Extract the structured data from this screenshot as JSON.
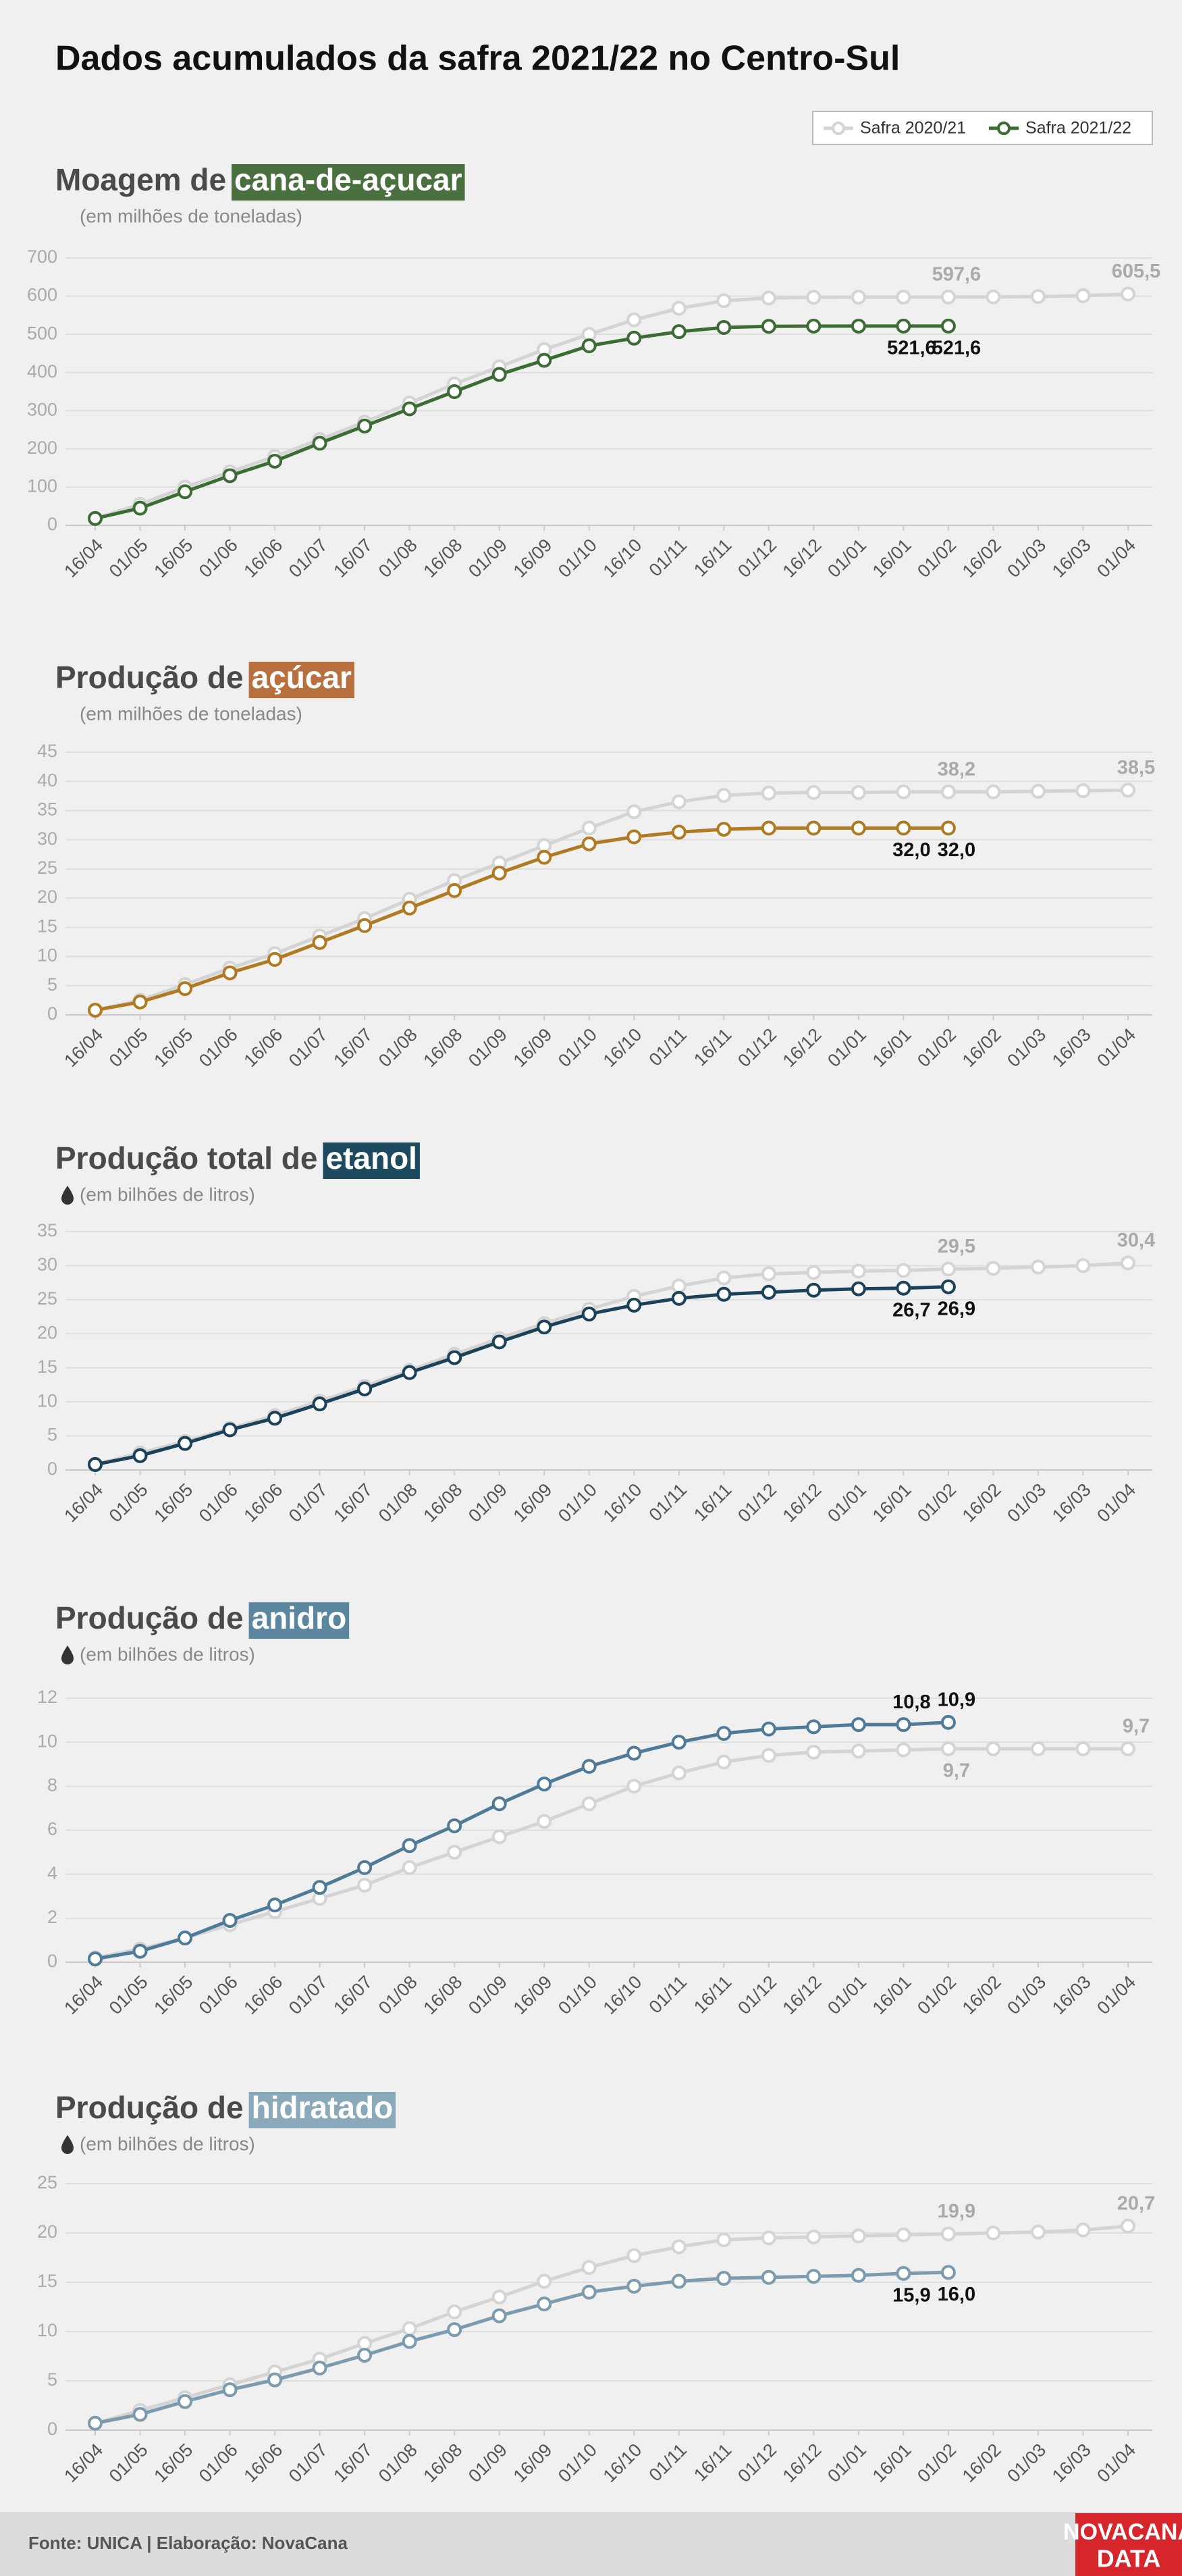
{
  "title": "Dados acumulados da safra 2021/22 no Centro-Sul",
  "footer": "Fonte: UNICA | Elaboração: NovaCana",
  "logo": [
    "NOVACANA",
    "DATA"
  ],
  "chart_data": [
    {
      "type": "line",
      "title": "Moagem de",
      "title_highlight": "cana-de-açucar",
      "title_color": "#4a7040",
      "subtitle": "(em milhões de toneladas)",
      "categories": [
        "16/04",
        "01/05",
        "16/05",
        "01/06",
        "16/06",
        "01/07",
        "16/07",
        "01/08",
        "16/08",
        "01/09",
        "16/09",
        "01/10",
        "16/10",
        "01/11",
        "16/11",
        "01/12",
        "16/12",
        "01/01",
        "16/01",
        "01/02",
        "16/02",
        "01/03",
        "16/03",
        "01/04"
      ],
      "ylim": [
        0,
        700
      ],
      "yticks": [
        0,
        100,
        200,
        300,
        400,
        500,
        600,
        700
      ],
      "grid": true,
      "series": [
        {
          "name": "Safra 2020/21",
          "color": "#d4d4d4",
          "values": [
            18,
            55,
            100,
            140,
            180,
            225,
            270,
            320,
            370,
            415,
            460,
            500,
            538,
            568,
            588,
            595,
            597,
            597.4,
            597.5,
            597.6,
            598,
            599,
            601,
            605.5
          ],
          "value_labels": [
            null,
            null,
            null,
            null,
            null,
            null,
            null,
            null,
            null,
            null,
            null,
            null,
            null,
            null,
            null,
            null,
            null,
            null,
            null,
            "597,6",
            null,
            null,
            null,
            "605,5"
          ]
        },
        {
          "name": "Safra 2021/22",
          "color": "#3d6b35",
          "values": [
            18,
            45,
            88,
            130,
            168,
            215,
            260,
            305,
            350,
            395,
            432,
            470,
            490,
            507,
            518,
            521,
            521.5,
            521.6,
            521.6,
            521.6,
            null,
            null,
            null,
            null
          ],
          "value_labels": [
            null,
            null,
            null,
            null,
            null,
            null,
            null,
            null,
            null,
            null,
            null,
            null,
            null,
            null,
            null,
            null,
            null,
            null,
            "521,6",
            "521,6",
            null,
            null,
            null,
            null
          ]
        }
      ]
    },
    {
      "type": "line",
      "title": "Produção de",
      "title_highlight": "açúcar",
      "title_color": "#b8703f",
      "subtitle": "(em milhões de toneladas)",
      "categories": [
        "16/04",
        "01/05",
        "16/05",
        "01/06",
        "16/06",
        "01/07",
        "16/07",
        "01/08",
        "16/08",
        "01/09",
        "16/09",
        "01/10",
        "16/10",
        "01/11",
        "16/11",
        "01/12",
        "16/12",
        "01/01",
        "16/01",
        "01/02",
        "16/02",
        "01/03",
        "16/03",
        "01/04"
      ],
      "ylim": [
        0,
        45
      ],
      "yticks": [
        0,
        5,
        10,
        15,
        20,
        25,
        30,
        35,
        40,
        45
      ],
      "grid": true,
      "series": [
        {
          "name": "Safra 2020/21",
          "color": "#d4d4d4",
          "values": [
            0.8,
            2.5,
            5.2,
            8,
            10.5,
            13.5,
            16.5,
            19.8,
            23,
            26,
            29,
            32,
            34.8,
            36.5,
            37.6,
            38,
            38.1,
            38.1,
            38.2,
            38.2,
            38.2,
            38.3,
            38.4,
            38.5
          ],
          "value_labels": [
            null,
            null,
            null,
            null,
            null,
            null,
            null,
            null,
            null,
            null,
            null,
            null,
            null,
            null,
            null,
            null,
            null,
            null,
            null,
            "38,2",
            null,
            null,
            null,
            "38,5"
          ]
        },
        {
          "name": "Safra 2021/22",
          "color": "#b07a22",
          "values": [
            0.8,
            2.2,
            4.5,
            7.2,
            9.5,
            12.4,
            15.3,
            18.3,
            21.3,
            24.3,
            27,
            29.3,
            30.5,
            31.3,
            31.8,
            32,
            32,
            32,
            32.0,
            32.0,
            null,
            null,
            null,
            null
          ],
          "value_labels": [
            null,
            null,
            null,
            null,
            null,
            null,
            null,
            null,
            null,
            null,
            null,
            null,
            null,
            null,
            null,
            null,
            null,
            null,
            "32,0",
            "32,0",
            null,
            null,
            null,
            null
          ]
        }
      ]
    },
    {
      "type": "line",
      "title": "Produção total de",
      "title_highlight": "etanol",
      "title_color": "#1d4a5e",
      "subtitle": "(em bilhões de litros)",
      "categories": [
        "16/04",
        "01/05",
        "16/05",
        "01/06",
        "16/06",
        "01/07",
        "16/07",
        "01/08",
        "16/08",
        "01/09",
        "16/09",
        "01/10",
        "16/10",
        "01/11",
        "16/11",
        "01/12",
        "16/12",
        "01/01",
        "16/01",
        "01/02",
        "16/02",
        "01/03",
        "16/03",
        "01/04"
      ],
      "ylim": [
        0,
        35
      ],
      "yticks": [
        0,
        5,
        10,
        15,
        20,
        25,
        30,
        35
      ],
      "grid": true,
      "series": [
        {
          "name": "Safra 2020/21",
          "color": "#d4d4d4",
          "values": [
            0.8,
            2.5,
            4.2,
            6.1,
            8,
            10.1,
            12.3,
            14.6,
            17,
            19.3,
            21.5,
            23.6,
            25.5,
            27,
            28.2,
            28.8,
            29,
            29.2,
            29.3,
            29.5,
            29.6,
            29.8,
            30,
            30.4
          ],
          "value_labels": [
            null,
            null,
            null,
            null,
            null,
            null,
            null,
            null,
            null,
            null,
            null,
            null,
            null,
            null,
            null,
            null,
            null,
            null,
            null,
            "29,5",
            null,
            null,
            null,
            "30,4"
          ]
        },
        {
          "name": "Safra 2021/22",
          "color": "#1b4258",
          "values": [
            0.8,
            2.1,
            3.9,
            5.9,
            7.6,
            9.7,
            11.9,
            14.3,
            16.5,
            18.8,
            21,
            22.9,
            24.2,
            25.2,
            25.8,
            26.1,
            26.4,
            26.6,
            26.7,
            26.9,
            null,
            null,
            null,
            null
          ],
          "value_labels": [
            null,
            null,
            null,
            null,
            null,
            null,
            null,
            null,
            null,
            null,
            null,
            null,
            null,
            null,
            null,
            null,
            null,
            null,
            "26,7",
            "26,9",
            null,
            null,
            null,
            null
          ]
        }
      ]
    },
    {
      "type": "line",
      "title": "Produção de",
      "title_highlight": "anidro",
      "title_color": "#5b86a0",
      "subtitle": "(em bilhões de litros)",
      "categories": [
        "16/04",
        "01/05",
        "16/05",
        "01/06",
        "16/06",
        "01/07",
        "16/07",
        "01/08",
        "16/08",
        "01/09",
        "16/09",
        "01/10",
        "16/10",
        "01/11",
        "16/11",
        "01/12",
        "16/12",
        "01/01",
        "16/01",
        "01/02",
        "16/02",
        "01/03",
        "16/03",
        "01/04"
      ],
      "ylim": [
        0,
        12
      ],
      "yticks": [
        0,
        2,
        4,
        6,
        8,
        10,
        12
      ],
      "grid": true,
      "series": [
        {
          "name": "Safra 2020/21",
          "color": "#d4d4d4",
          "values": [
            0.2,
            0.6,
            1.1,
            1.7,
            2.3,
            2.9,
            3.5,
            4.3,
            5,
            5.7,
            6.4,
            7.2,
            8,
            8.6,
            9.1,
            9.4,
            9.55,
            9.6,
            9.65,
            9.7,
            9.7,
            9.7,
            9.7,
            9.7
          ],
          "value_labels": [
            null,
            null,
            null,
            null,
            null,
            null,
            null,
            null,
            null,
            null,
            null,
            null,
            null,
            null,
            null,
            null,
            null,
            null,
            null,
            "9,7",
            null,
            null,
            null,
            "9,7"
          ]
        },
        {
          "name": "Safra 2021/22",
          "color": "#4f7b98",
          "values": [
            0.15,
            0.5,
            1.1,
            1.9,
            2.6,
            3.4,
            4.3,
            5.3,
            6.2,
            7.2,
            8.1,
            8.9,
            9.5,
            10,
            10.4,
            10.6,
            10.7,
            10.8,
            10.8,
            10.9,
            null,
            null,
            null,
            null
          ],
          "value_labels": [
            null,
            null,
            null,
            null,
            null,
            null,
            null,
            null,
            null,
            null,
            null,
            null,
            null,
            null,
            null,
            null,
            null,
            null,
            "10,8",
            "10,9",
            null,
            null,
            null,
            null
          ]
        }
      ]
    },
    {
      "type": "line",
      "title": "Produção de",
      "title_highlight": "hidratado",
      "title_color": "#8aaabb",
      "subtitle": "(em bilhões de litros)",
      "categories": [
        "16/04",
        "01/05",
        "16/05",
        "01/06",
        "16/06",
        "01/07",
        "16/07",
        "01/08",
        "16/08",
        "01/09",
        "16/09",
        "01/10",
        "16/10",
        "01/11",
        "16/11",
        "01/12",
        "16/12",
        "01/01",
        "16/01",
        "01/02",
        "16/02",
        "01/03",
        "16/03",
        "01/04"
      ],
      "ylim": [
        0,
        25
      ],
      "yticks": [
        0,
        5,
        10,
        15,
        20,
        25
      ],
      "grid": true,
      "series": [
        {
          "name": "Safra 2020/21",
          "color": "#d4d4d4",
          "values": [
            0.7,
            2,
            3.3,
            4.6,
            5.9,
            7.2,
            8.8,
            10.3,
            12,
            13.5,
            15.1,
            16.5,
            17.7,
            18.6,
            19.3,
            19.5,
            19.6,
            19.7,
            19.8,
            19.9,
            20,
            20.1,
            20.3,
            20.7
          ],
          "value_labels": [
            null,
            null,
            null,
            null,
            null,
            null,
            null,
            null,
            null,
            null,
            null,
            null,
            null,
            null,
            null,
            null,
            null,
            null,
            null,
            "19,9",
            null,
            null,
            null,
            "20,7"
          ]
        },
        {
          "name": "Safra 2021/22",
          "color": "#7c9bae",
          "values": [
            0.7,
            1.6,
            2.9,
            4.1,
            5.1,
            6.3,
            7.6,
            9,
            10.2,
            11.6,
            12.8,
            14,
            14.6,
            15.1,
            15.4,
            15.5,
            15.6,
            15.7,
            15.9,
            16.0,
            null,
            null,
            null,
            null
          ],
          "value_labels": [
            null,
            null,
            null,
            null,
            null,
            null,
            null,
            null,
            null,
            null,
            null,
            null,
            null,
            null,
            null,
            null,
            null,
            null,
            "15,9",
            "16,0",
            null,
            null,
            null,
            null
          ]
        }
      ]
    }
  ]
}
